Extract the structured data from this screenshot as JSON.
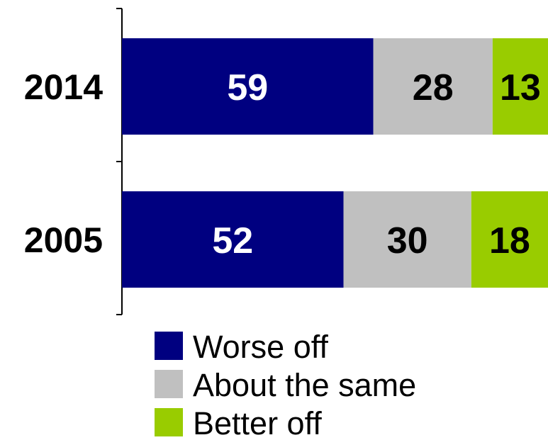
{
  "chart_data": {
    "type": "bar",
    "orientation": "horizontal",
    "stacked": true,
    "categories": [
      "2014",
      "2005"
    ],
    "series": [
      {
        "name": "Worse off",
        "values": [
          59,
          52
        ],
        "color": "#000080",
        "label_color": "#ffffff"
      },
      {
        "name": "About the same",
        "values": [
          28,
          30
        ],
        "color": "#c0c0c0",
        "label_color": "#000000"
      },
      {
        "name": "Better off",
        "values": [
          13,
          18
        ],
        "color": "#99cc00",
        "label_color": "#000000"
      }
    ],
    "xlim": [
      0,
      100
    ],
    "grid": false,
    "legend_position": "bottom",
    "title": "",
    "xlabel": "",
    "ylabel": ""
  }
}
